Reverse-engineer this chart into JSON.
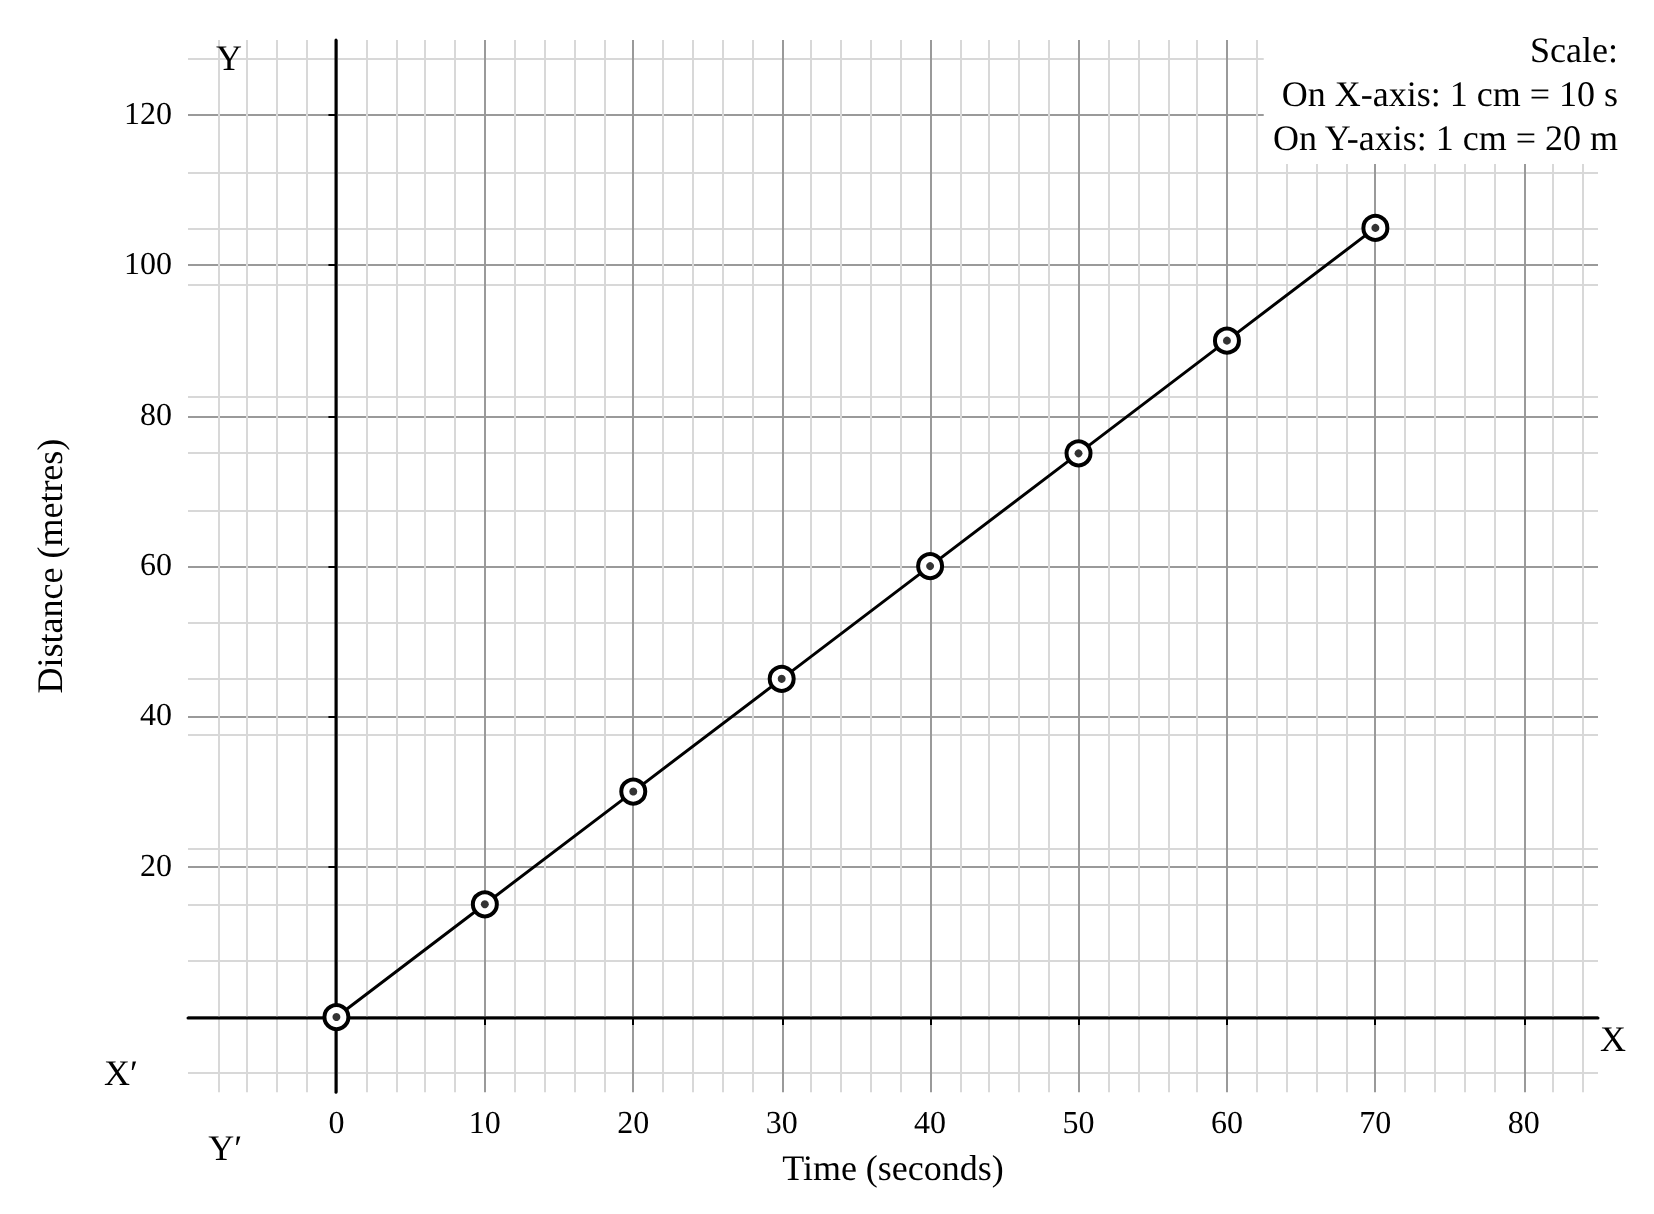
{
  "chart_data": {
    "type": "line",
    "xlabel": "Time (seconds)",
    "ylabel": "Distance (metres)",
    "x": [
      0,
      10,
      20,
      30,
      40,
      50,
      60,
      70
    ],
    "series": [
      {
        "color": "#000000",
        "values": [
          0,
          15,
          30,
          45,
          60,
          75,
          90,
          105
        ]
      }
    ],
    "xlim": [
      -10,
      85
    ],
    "ylim": [
      -10,
      130
    ],
    "xticks": [
      0,
      10,
      20,
      30,
      40,
      50,
      60,
      70,
      80
    ],
    "yticks": [
      {
        "value": 0,
        "label": null
      },
      20,
      40,
      60,
      80,
      100,
      120
    ],
    "grid": true,
    "marker": "circle",
    "line_style": "solid",
    "annotations": [
      "Scale:\nOn X-axis: 1 cm = 10 s\nOn Y-axis: 1 cm = 20 m",
      "X",
      "X′",
      "Y",
      "Y′"
    ]
  }
}
